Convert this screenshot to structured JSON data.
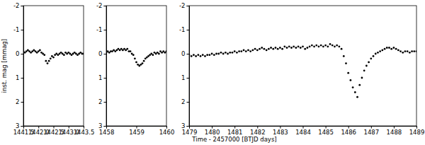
{
  "chart_data": [
    {
      "type": "scatter",
      "y_label": "inst. mag [mmag]",
      "color": "#000000",
      "marker": "circle",
      "xlim": [
        1441.5,
        1443.5
      ],
      "xticks": [
        1441.5,
        {
          "value": 1442,
          "label": "1442.0"
        },
        1442.5,
        {
          "value": 1443,
          "label": "1443.0"
        },
        1443.5
      ],
      "ylim": [
        3,
        -2
      ],
      "yticks": [
        -2,
        -1,
        0,
        1,
        2,
        3
      ],
      "x": [
        1441.5,
        1441.55,
        1441.6,
        1441.65,
        1441.7,
        1441.75,
        1441.8,
        1441.85,
        1441.9,
        1441.95,
        1442.0,
        1442.05,
        1442.1,
        1442.15,
        1442.2,
        1442.25,
        1442.3,
        1442.35,
        1442.4,
        1442.45,
        1442.5,
        1442.55,
        1442.6,
        1442.65,
        1442.7,
        1442.75,
        1442.8,
        1442.85,
        1442.9,
        1442.95,
        1443.0,
        1443.05,
        1443.1,
        1443.15,
        1443.2,
        1443.25,
        1443.3,
        1443.35,
        1443.4,
        1443.45,
        1443.5
      ],
      "values": [
        -0.1,
        -0.05,
        -0.1,
        -0.15,
        -0.1,
        -0.05,
        -0.1,
        -0.15,
        -0.1,
        -0.05,
        -0.1,
        -0.15,
        -0.05,
        0.0,
        0.05,
        0.3,
        0.4,
        0.3,
        0.2,
        0.1,
        0.15,
        0.05,
        0.0,
        0.05,
        0.0,
        -0.05,
        0.0,
        0.05,
        -0.05,
        0.0,
        -0.05,
        0.0,
        0.05,
        0.0,
        -0.05,
        0.0,
        0.05,
        0.0,
        -0.05,
        0.0,
        0.0
      ]
    },
    {
      "type": "scatter",
      "color": "#000000",
      "marker": "circle",
      "xlim": [
        1458,
        1460
      ],
      "xticks": [
        1458,
        1459,
        1460
      ],
      "ylim": [
        3,
        -2
      ],
      "yticks": [
        -2,
        -1,
        0,
        1,
        2,
        3
      ],
      "x": [
        1458.0,
        1458.05,
        1458.1,
        1458.15,
        1458.2,
        1458.25,
        1458.3,
        1458.35,
        1458.4,
        1458.45,
        1458.5,
        1458.55,
        1458.6,
        1458.65,
        1458.7,
        1458.75,
        1458.8,
        1458.85,
        1458.9,
        1458.95,
        1459.0,
        1459.05,
        1459.1,
        1459.15,
        1459.2,
        1459.25,
        1459.3,
        1459.35,
        1459.4,
        1459.45,
        1459.5,
        1459.55,
        1459.6,
        1459.65,
        1459.7,
        1459.75,
        1459.8,
        1459.85,
        1459.9,
        1459.95,
        1460.0
      ],
      "values": [
        -0.05,
        -0.1,
        -0.05,
        -0.1,
        -0.1,
        -0.15,
        -0.1,
        -0.15,
        -0.2,
        -0.15,
        -0.2,
        -0.15,
        -0.2,
        -0.15,
        -0.2,
        -0.1,
        -0.1,
        0.0,
        0.05,
        0.2,
        0.35,
        0.45,
        0.5,
        0.45,
        0.4,
        0.3,
        0.2,
        0.15,
        0.1,
        0.05,
        0.0,
        0.05,
        -0.05,
        0.0,
        -0.05,
        0.0,
        -0.1,
        -0.05,
        -0.1,
        -0.05,
        -0.1
      ]
    },
    {
      "type": "scatter",
      "x_label": "Time - 2457000 [BTJD days]",
      "color": "#000000",
      "marker": "circle",
      "xlim": [
        1479,
        1489
      ],
      "xticks": [
        1479,
        1480,
        1481,
        1482,
        1483,
        1484,
        1485,
        1486,
        1487,
        1488,
        1489
      ],
      "ylim": [
        3,
        -2
      ],
      "yticks": [
        -2,
        -1,
        0,
        1,
        2,
        3
      ],
      "x": [
        1479.0,
        1479.1,
        1479.2,
        1479.3,
        1479.4,
        1479.5,
        1479.6,
        1479.7,
        1479.8,
        1479.9,
        1480.0,
        1480.1,
        1480.2,
        1480.3,
        1480.4,
        1480.5,
        1480.6,
        1480.7,
        1480.8,
        1480.9,
        1481.0,
        1481.1,
        1481.2,
        1481.3,
        1481.4,
        1481.5,
        1481.6,
        1481.7,
        1481.8,
        1481.9,
        1482.0,
        1482.1,
        1482.2,
        1482.3,
        1482.4,
        1482.5,
        1482.6,
        1482.7,
        1482.8,
        1482.9,
        1483.0,
        1483.1,
        1483.2,
        1483.3,
        1483.4,
        1483.5,
        1483.6,
        1483.7,
        1483.8,
        1483.9,
        1484.0,
        1484.1,
        1484.2,
        1484.3,
        1484.4,
        1484.5,
        1484.6,
        1484.7,
        1484.8,
        1484.9,
        1485.0,
        1485.1,
        1485.2,
        1485.3,
        1485.4,
        1485.5,
        1485.6,
        1485.7,
        1485.8,
        1485.9,
        1486.0,
        1486.1,
        1486.2,
        1486.3,
        1486.4,
        1486.5,
        1486.6,
        1486.7,
        1486.8,
        1486.9,
        1487.0,
        1487.1,
        1487.2,
        1487.3,
        1487.4,
        1487.5,
        1487.6,
        1487.7,
        1487.8,
        1487.9,
        1488.0,
        1488.1,
        1488.2,
        1488.3,
        1488.4,
        1488.5,
        1488.6,
        1488.7,
        1488.8,
        1488.9,
        1489.0
      ],
      "values": [
        0.05,
        0.1,
        0.05,
        0.1,
        0.05,
        0.1,
        0.05,
        0.1,
        0.05,
        0.05,
        0.0,
        0.05,
        0.0,
        0.0,
        -0.05,
        0.0,
        -0.05,
        0.0,
        -0.05,
        -0.05,
        -0.1,
        -0.05,
        -0.1,
        -0.1,
        -0.15,
        -0.1,
        -0.15,
        -0.1,
        -0.15,
        -0.2,
        -0.15,
        -0.2,
        -0.25,
        -0.2,
        -0.15,
        -0.2,
        -0.25,
        -0.2,
        -0.25,
        -0.2,
        -0.25,
        -0.2,
        -0.3,
        -0.25,
        -0.3,
        -0.25,
        -0.3,
        -0.25,
        -0.3,
        -0.25,
        -0.3,
        -0.2,
        -0.25,
        -0.3,
        -0.35,
        -0.3,
        -0.35,
        -0.3,
        -0.35,
        -0.3,
        -0.35,
        -0.3,
        -0.4,
        -0.35,
        -0.3,
        -0.35,
        -0.3,
        -0.2,
        0.1,
        0.4,
        0.8,
        1.1,
        1.4,
        1.6,
        1.8,
        1.3,
        1.0,
        0.7,
        0.5,
        0.35,
        0.2,
        0.1,
        0.0,
        -0.05,
        -0.1,
        -0.15,
        -0.2,
        -0.25,
        -0.25,
        -0.2,
        -0.25,
        -0.2,
        -0.15,
        -0.1,
        -0.05,
        -0.1,
        -0.1,
        -0.05,
        -0.1,
        -0.1,
        -0.1
      ]
    }
  ]
}
